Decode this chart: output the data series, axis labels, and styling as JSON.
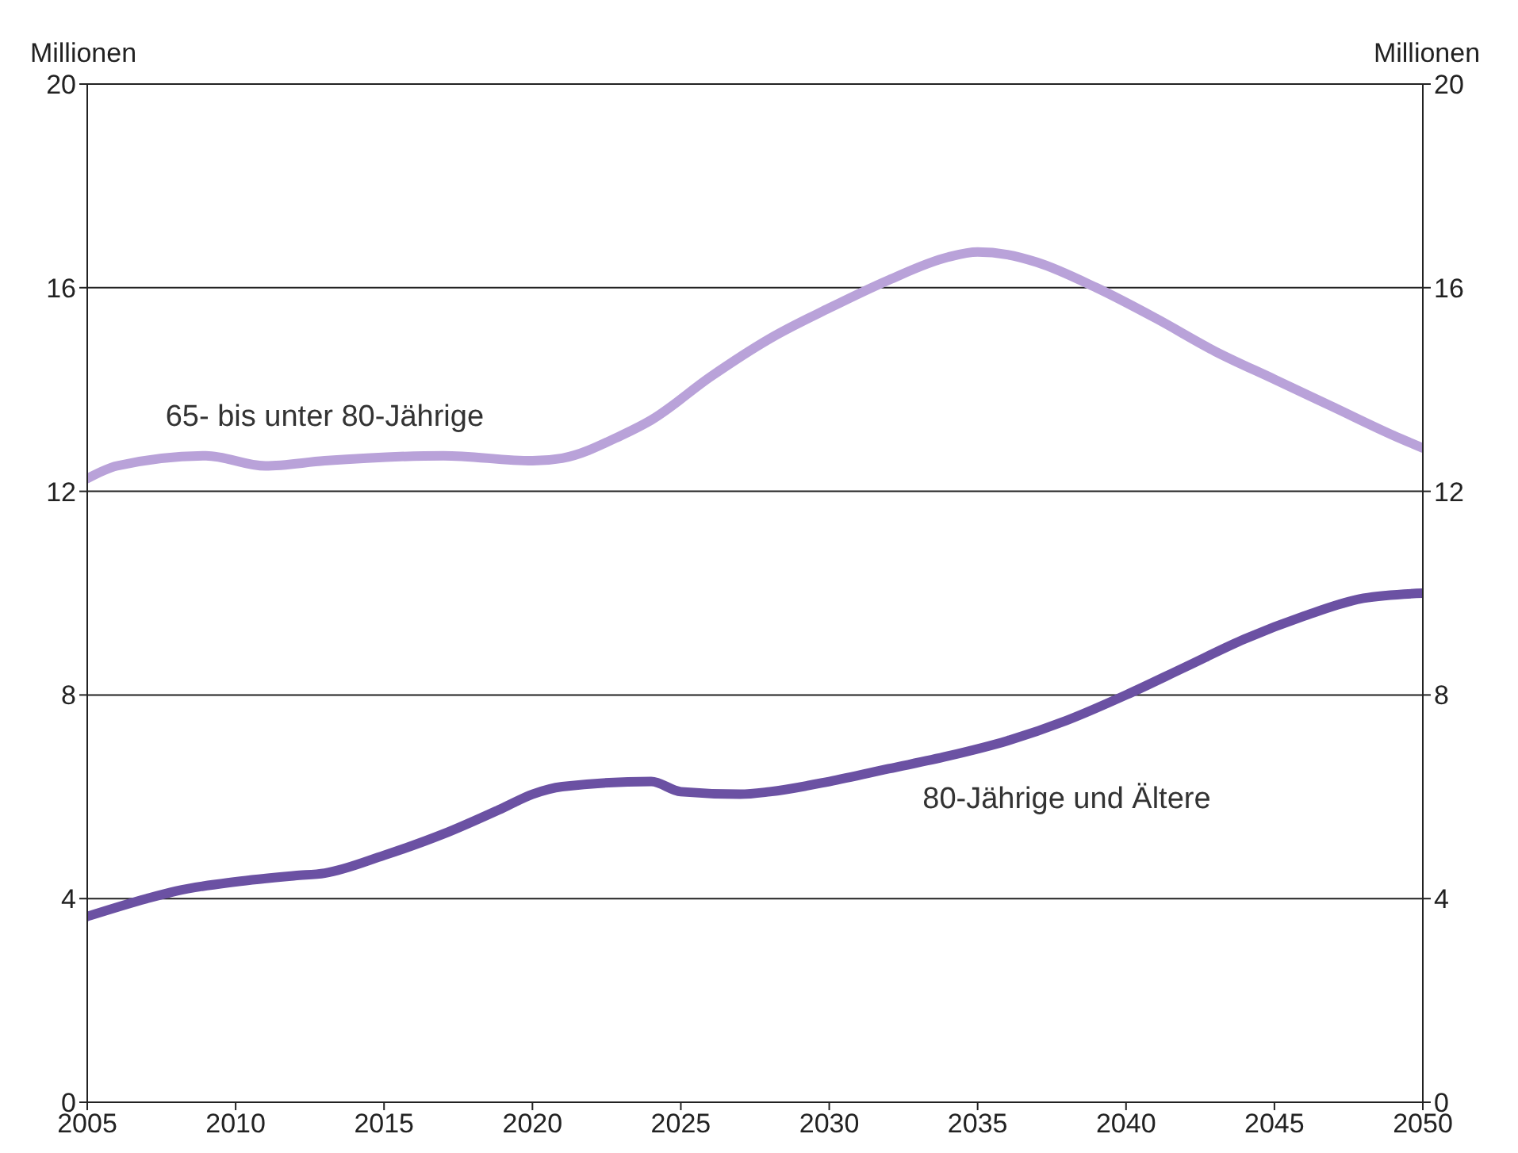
{
  "chart_data": {
    "type": "line",
    "ylabel": "Millionen",
    "y2label": "Millionen",
    "xlim": [
      2005,
      2050
    ],
    "xticks": [
      2005,
      2010,
      2015,
      2020,
      2025,
      2030,
      2035,
      2040,
      2045,
      2050
    ],
    "ylim": [
      0,
      20
    ],
    "yticks": [
      0,
      4,
      8,
      12,
      16,
      20
    ],
    "y2lim": [
      0,
      20
    ],
    "y2ticks": [
      0,
      4,
      8,
      12,
      16,
      20
    ],
    "grid": "y",
    "legend": false,
    "marker": "none",
    "line_style": "solid",
    "series": [
      {
        "name": "65- bis unter 80-Jährige",
        "color": "#b9a2d9",
        "x": [
          2005,
          2006,
          2009,
          2011,
          2013,
          2017,
          2020,
          2021,
          2023,
          2024,
          2026,
          2028,
          2030,
          2032,
          2034,
          2035,
          2036,
          2037,
          2039,
          2041,
          2043,
          2045,
          2047,
          2049,
          2050
        ],
        "values": [
          12.25,
          12.5,
          12.7,
          12.5,
          12.6,
          12.7,
          12.6,
          12.65,
          13.1,
          13.4,
          14.25,
          15.0,
          15.6,
          16.15,
          16.6,
          16.7,
          16.65,
          16.5,
          16.0,
          15.4,
          14.75,
          14.2,
          13.65,
          13.1,
          12.85
        ]
      },
      {
        "name": "80-Jährige und Ältere",
        "color": "#6b51a3",
        "x": [
          2005,
          2007,
          2008,
          2010,
          2012,
          2013,
          2015,
          2017,
          2019,
          2020,
          2021,
          2024,
          2025,
          2027,
          2028,
          2030,
          2032,
          2034,
          2036,
          2038,
          2040,
          2042,
          2044,
          2046,
          2048,
          2050
        ],
        "values": [
          3.65,
          4.0,
          4.15,
          4.33,
          4.45,
          4.5,
          4.85,
          5.27,
          5.78,
          6.05,
          6.2,
          6.3,
          6.1,
          6.05,
          6.1,
          6.3,
          6.55,
          6.8,
          7.1,
          7.5,
          8.0,
          8.55,
          9.1,
          9.55,
          9.9,
          10.0
        ]
      }
    ]
  }
}
